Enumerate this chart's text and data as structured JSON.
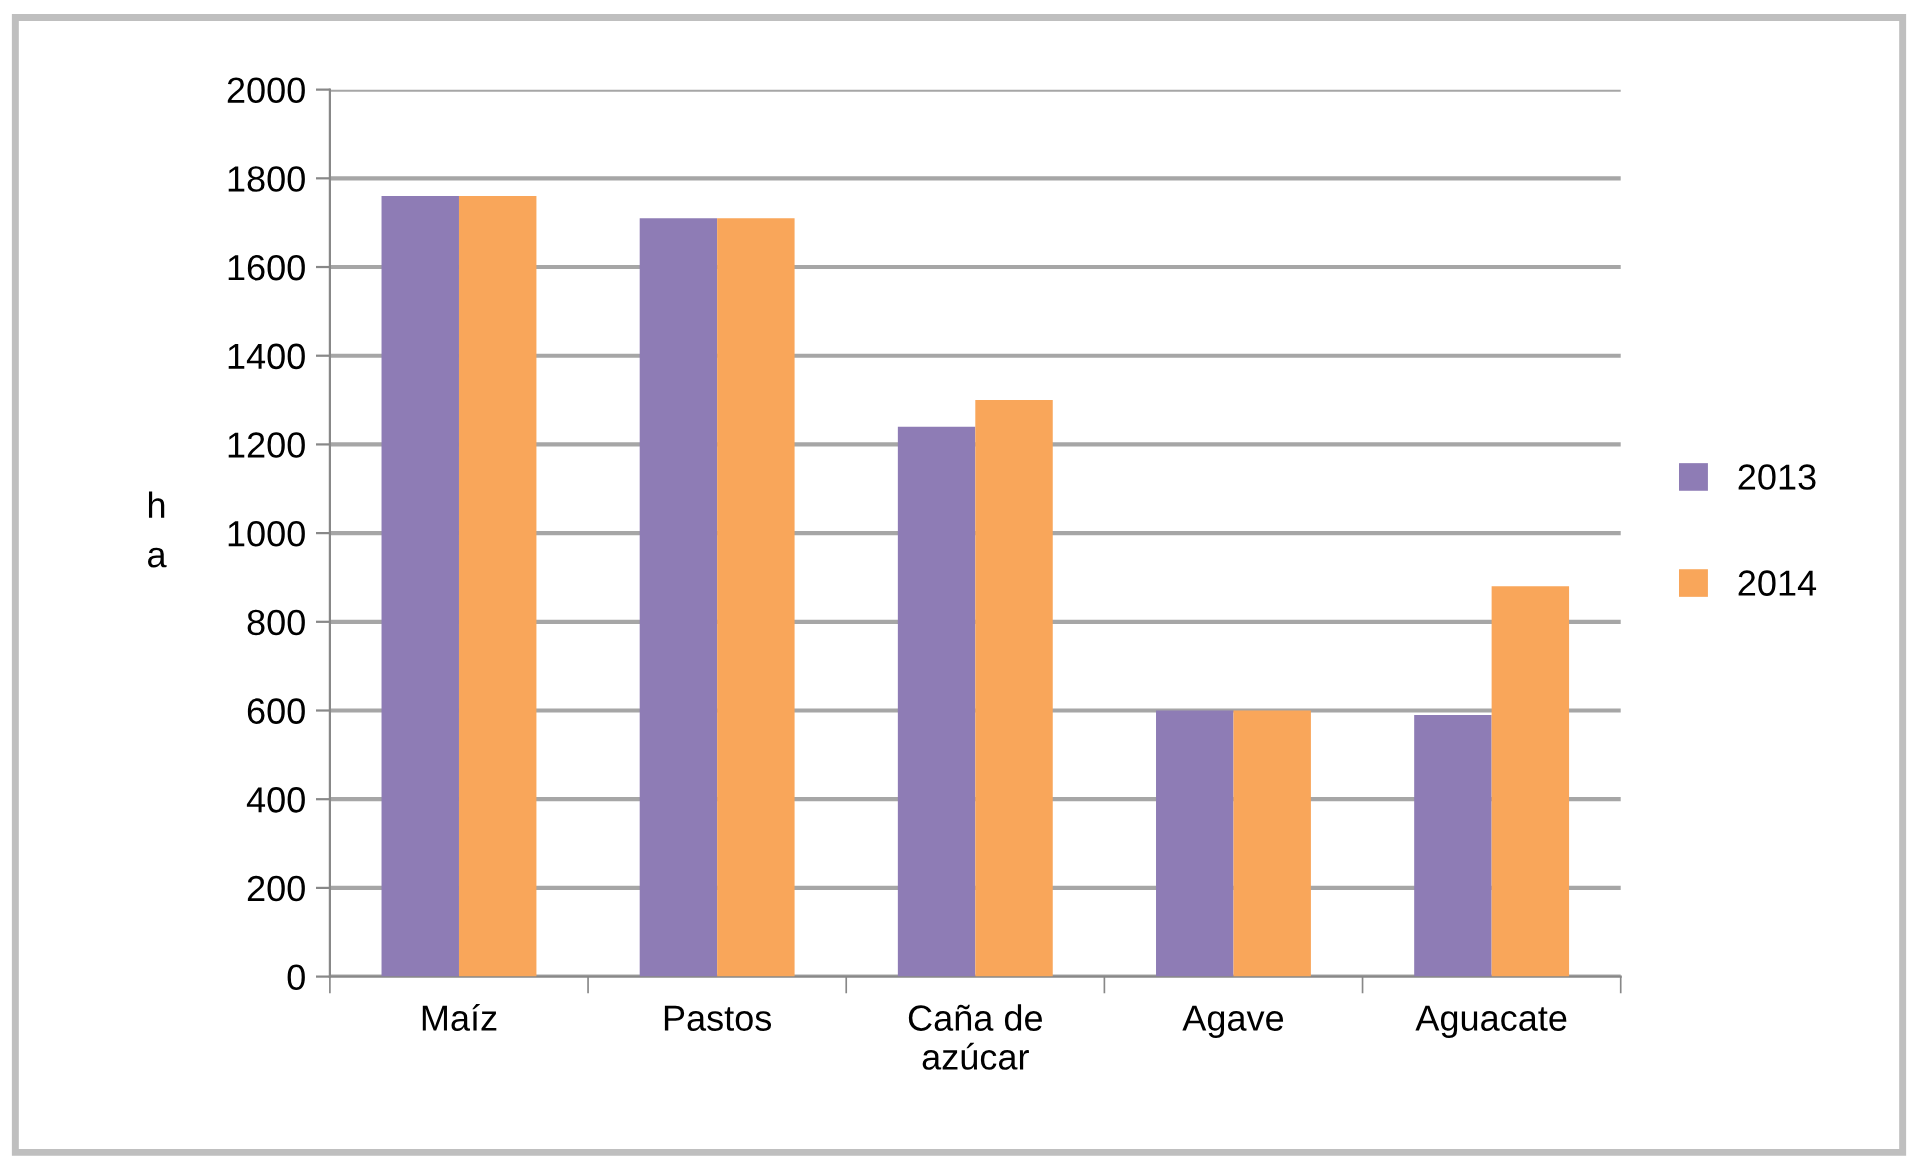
{
  "chart_data": {
    "type": "bar",
    "ylabel": "h\na",
    "categories": [
      "Maíz",
      "Pastos",
      "Caña de\nazúcar",
      "Agave",
      "Aguacate"
    ],
    "series": [
      {
        "name": "2013",
        "color": "#8e7cb5",
        "values": [
          1760,
          1710,
          1240,
          600,
          590
        ]
      },
      {
        "name": "2014",
        "color": "#f9a65a",
        "values": [
          1760,
          1710,
          1300,
          600,
          880
        ]
      }
    ],
    "ylim": [
      0,
      2000
    ],
    "yticks": [
      0,
      200,
      400,
      600,
      800,
      1000,
      1200,
      1400,
      1600,
      1800,
      2000
    ],
    "grid": "y",
    "legend": "right"
  }
}
